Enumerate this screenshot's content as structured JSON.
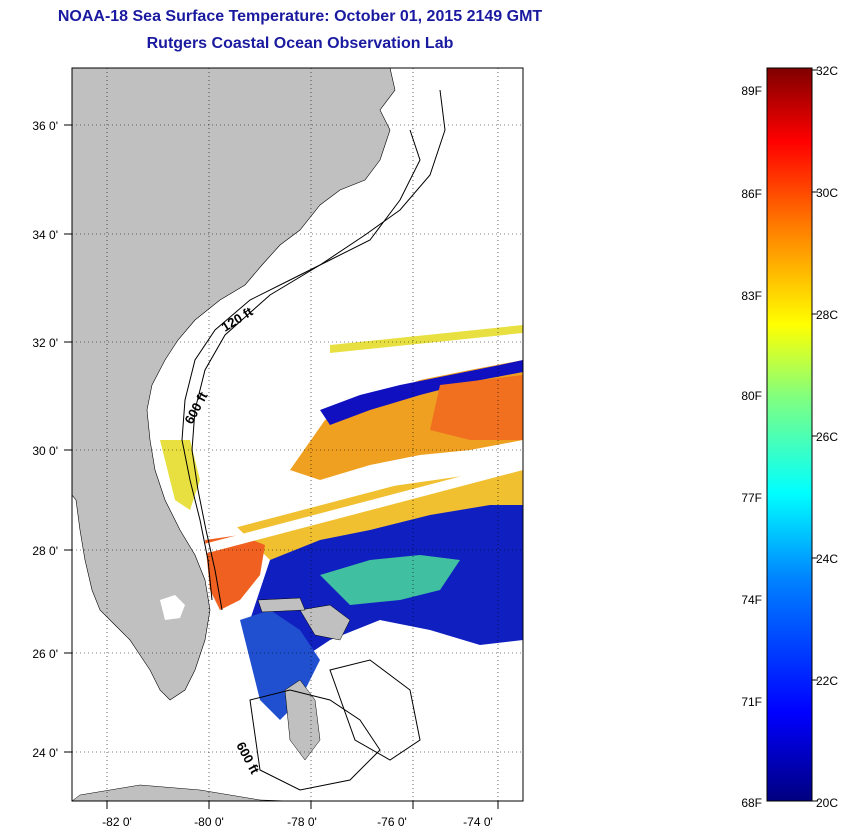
{
  "header": {
    "title": "NOAA-18 Sea Surface Temperature:  October 01, 2015 2149 GMT",
    "subtitle": "Rutgers Coastal Ocean Observation Lab"
  },
  "map": {
    "lon_labels": [
      "-82 0'",
      "-80 0'",
      "-78 0'",
      "-76 0'",
      "-74 0'"
    ],
    "lat_labels": [
      "36 0'",
      "34 0'",
      "32 0'",
      "30 0'",
      "28 0'",
      "26 0'",
      "24 0'"
    ],
    "contour_labels": [
      "120 ft",
      "600 ft",
      "600 ft"
    ],
    "land_color": "#c0c0c0",
    "ocean_nodata_color": "#ffffff"
  },
  "colorbar": {
    "fahrenheit_labels": [
      "89F",
      "86F",
      "83F",
      "80F",
      "77F",
      "74F",
      "71F",
      "68F"
    ],
    "celsius_labels": [
      "32C",
      "30C",
      "28C",
      "26C",
      "24C",
      "22C",
      "20C"
    ],
    "min_c": 20,
    "max_c": 32,
    "colors": [
      "#7f0000",
      "#ff0000",
      "#ff8000",
      "#ffff00",
      "#80ff80",
      "#00ffff",
      "#0080ff",
      "#0000ff",
      "#00007f"
    ]
  }
}
